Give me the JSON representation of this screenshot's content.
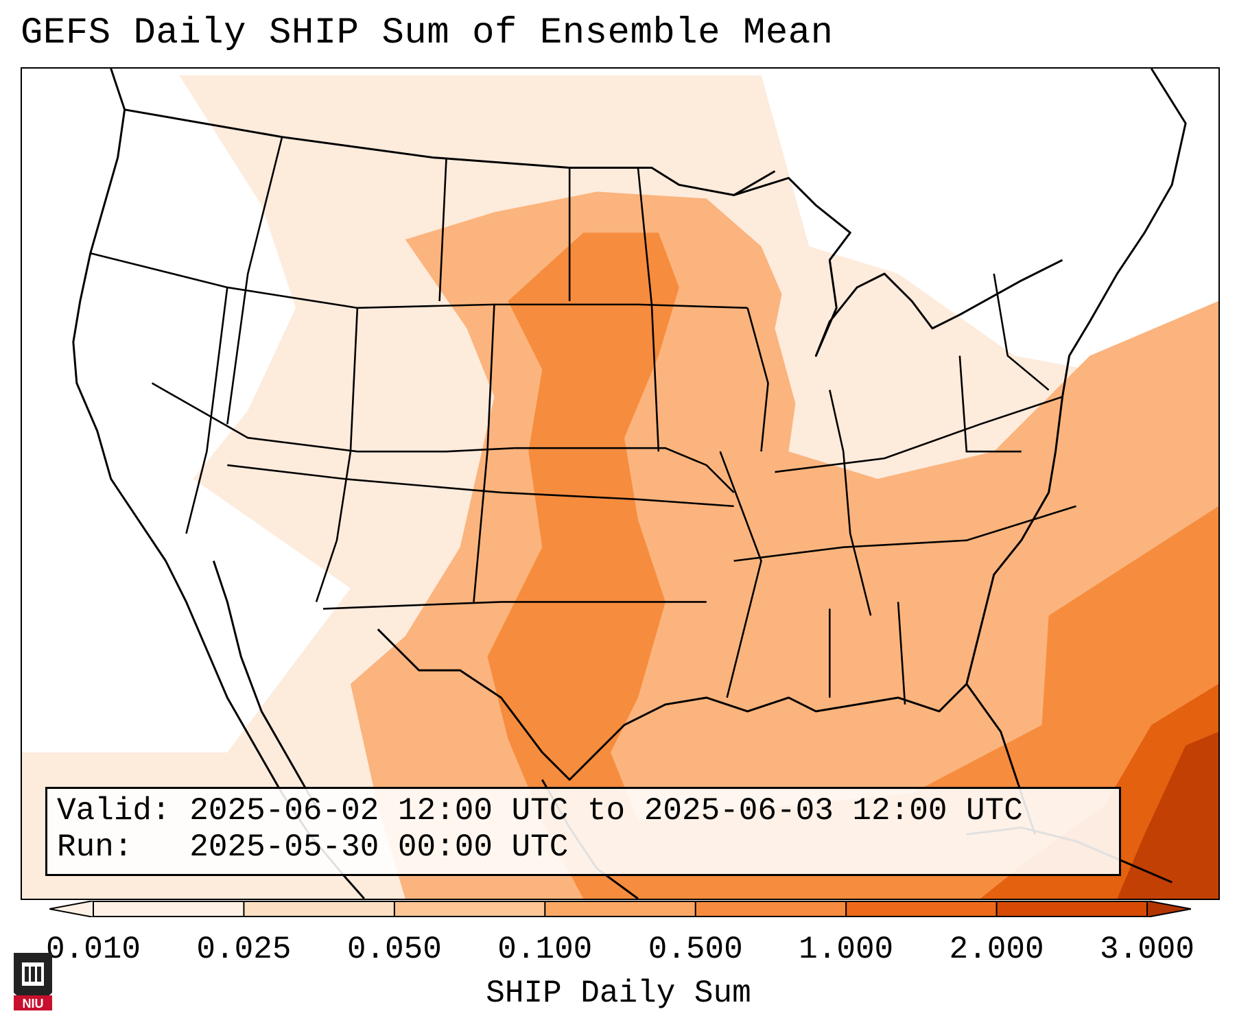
{
  "title": "GEFS Daily SHIP Sum of Ensemble Mean",
  "info": {
    "valid_label": "Valid:",
    "valid_value": "2025-06-02 12:00 UTC to 2025-06-03 12:00 UTC",
    "run_label": "Run:",
    "run_value": "2025-05-30 00:00 UTC"
  },
  "colorbar": {
    "label": "SHIP Daily Sum",
    "ticks": [
      "0.010",
      "0.025",
      "0.050",
      "0.100",
      "0.500",
      "1.000",
      "2.000",
      "3.000"
    ],
    "colors": [
      "#fff1e5",
      "#fde0c3",
      "#fcc695",
      "#fba865",
      "#f78b3f",
      "#ee6a1a",
      "#d74a04",
      "#b23502"
    ],
    "extend": "both"
  },
  "logo": {
    "text": "NIU"
  },
  "colors": {
    "light": "#fde5cd",
    "medium": "#fbb47d",
    "strong": "#f68c3e",
    "deep": "#e3610f",
    "deepest": "#c24003"
  }
}
